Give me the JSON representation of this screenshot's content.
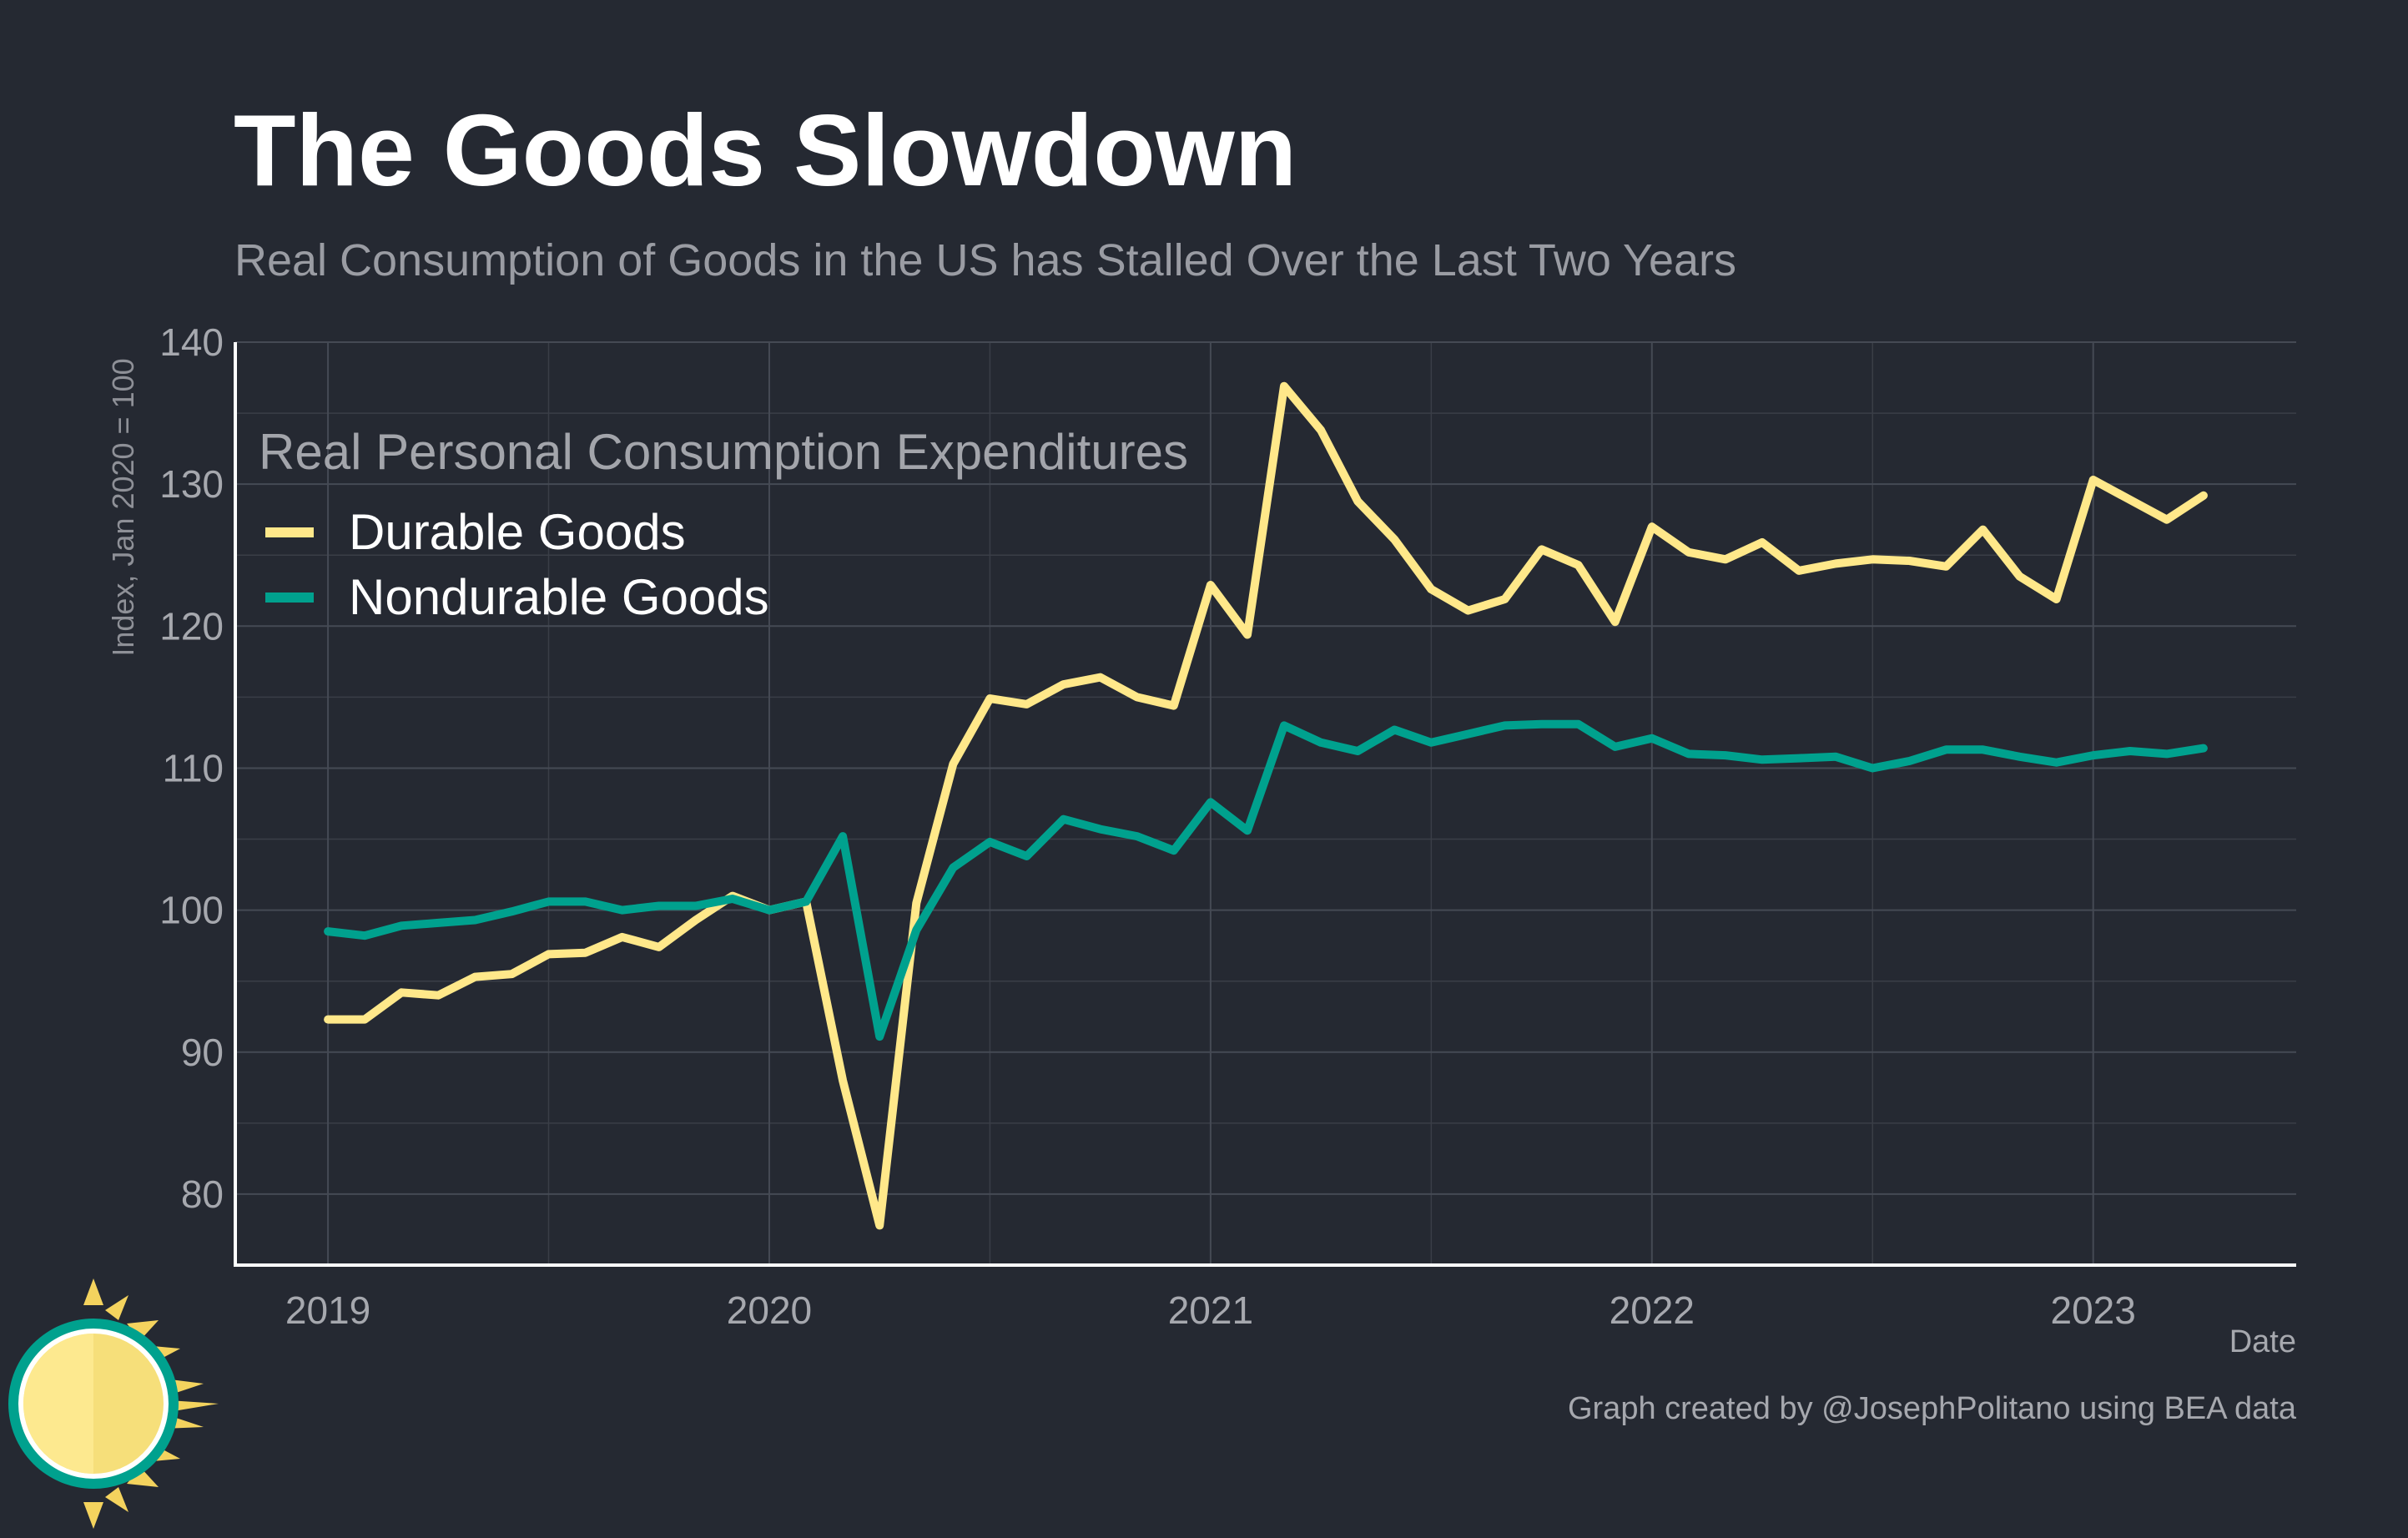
{
  "title": "The Goods Slowdown",
  "subtitle": "Real Consumption of Goods in the US has Stalled Over the Last Two Years",
  "caption": "Graph created by @JosephPolitano using BEA data",
  "colors": {
    "background": "#252932",
    "durable": "#ffe88a",
    "nondurable": "#00a18e"
  },
  "logo": {
    "icon": "sun-logo-icon"
  },
  "chart_data": {
    "type": "line",
    "ylabel": "Index, Jan 2020 = 100",
    "xlabel": "Date",
    "ylim": [
      75,
      140
    ],
    "xlim": [
      2018.79,
      2023.46
    ],
    "yticks": [
      80,
      90,
      100,
      110,
      120,
      130,
      140
    ],
    "xticks": [
      {
        "value": 2019,
        "label": "2019"
      },
      {
        "value": 2020,
        "label": "2020"
      },
      {
        "value": 2021,
        "label": "2021"
      },
      {
        "value": 2022,
        "label": "2022"
      },
      {
        "value": 2023,
        "label": "2023"
      }
    ],
    "grid": true,
    "legend": {
      "title": "Real Personal Consumption Expenditures",
      "position": "top-left"
    },
    "x_start": "2019-01",
    "x_frequency": "monthly",
    "series": [
      {
        "name": "Durable Goods",
        "color": "#ffe88a",
        "values": [
          92.3,
          92.3,
          94.2,
          94.0,
          95.3,
          95.5,
          96.9,
          97.0,
          98.1,
          97.4,
          99.3,
          101.0,
          100.0,
          100.6,
          88.0,
          77.8,
          100.5,
          110.3,
          114.9,
          114.5,
          115.9,
          116.4,
          115.0,
          114.4,
          122.9,
          119.4,
          136.9,
          133.8,
          128.8,
          126.1,
          122.6,
          121.1,
          121.9,
          125.4,
          124.3,
          120.3,
          127.0,
          125.2,
          124.7,
          125.9,
          123.9,
          124.4,
          124.7,
          124.6,
          124.2,
          126.8,
          123.5,
          121.9,
          130.3,
          128.9,
          127.5,
          129.2
        ]
      },
      {
        "name": "Nondurable Goods",
        "color": "#00a18e",
        "values": [
          98.5,
          98.2,
          98.9,
          99.1,
          99.3,
          99.9,
          100.6,
          100.6,
          100.0,
          100.3,
          100.3,
          100.8,
          100.0,
          100.6,
          105.2,
          91.1,
          98.6,
          103.0,
          104.8,
          103.8,
          106.4,
          105.7,
          105.2,
          104.2,
          107.6,
          105.6,
          113.0,
          111.8,
          111.2,
          112.7,
          111.8,
          112.4,
          113.0,
          113.1,
          113.1,
          111.5,
          112.1,
          111.0,
          110.9,
          110.6,
          110.7,
          110.8,
          110.0,
          110.5,
          111.3,
          111.3,
          110.8,
          110.4,
          110.9,
          111.2,
          111.0,
          111.4
        ]
      }
    ]
  }
}
